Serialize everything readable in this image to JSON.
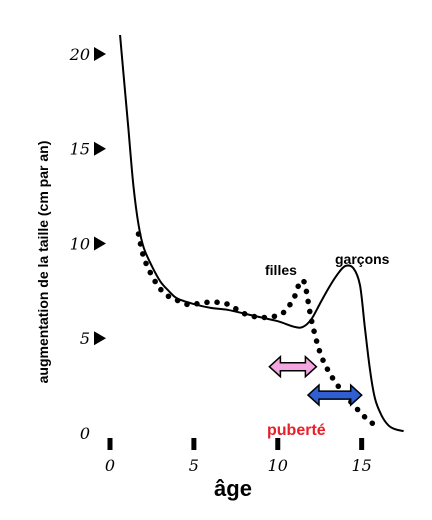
{
  "chart_data": {
    "type": "line",
    "xlabel": "âge",
    "ylabel": "augmentation de la taille (cm par an)",
    "xlim": [
      0,
      18
    ],
    "ylim": [
      0,
      21
    ],
    "x_ticks": [
      0,
      5,
      10,
      15
    ],
    "x_tick_labels": [
      "0",
      "5",
      "10",
      "15"
    ],
    "y_ticks": [
      0,
      5,
      10,
      15,
      20
    ],
    "y_tick_labels": [
      "0",
      "5",
      "10",
      "15",
      "20"
    ],
    "grid": false,
    "series": [
      {
        "name": "garçons",
        "style": "solid",
        "color": "#000000",
        "x": [
          0.5,
          0.8,
          1.1,
          1.4,
          1.7,
          2.0,
          2.5,
          3.0,
          3.5,
          4.0,
          5.0,
          6.0,
          7.0,
          8.0,
          9.0,
          10.0,
          11.0,
          11.5,
          12.0,
          12.5,
          13.0,
          13.5,
          14.0,
          14.5,
          14.9,
          15.2,
          15.5,
          15.8,
          16.2,
          16.6,
          17.0,
          17.5
        ],
        "y": [
          22.0,
          19.0,
          16.0,
          13.0,
          11.0,
          9.8,
          8.8,
          8.0,
          7.5,
          7.1,
          6.8,
          6.6,
          6.5,
          6.3,
          6.1,
          5.9,
          5.6,
          5.6,
          6.0,
          6.8,
          7.6,
          8.3,
          8.8,
          8.7,
          7.8,
          5.5,
          3.3,
          1.8,
          0.9,
          0.4,
          0.2,
          0.1
        ]
      },
      {
        "name": "filles",
        "style": "dotted",
        "color": "#000000",
        "x": [
          1.7,
          2.0,
          2.5,
          3.0,
          3.5,
          4.0,
          4.5,
          5.0,
          6.0,
          7.0,
          8.0,
          9.0,
          10.0,
          10.5,
          11.0,
          11.3,
          11.6,
          12.0,
          12.5,
          13.0,
          13.5,
          14.0,
          14.5,
          15.0,
          15.5,
          16.0
        ],
        "y": [
          10.5,
          9.3,
          8.3,
          7.6,
          7.2,
          7.0,
          6.8,
          6.8,
          6.9,
          6.8,
          6.3,
          6.1,
          6.2,
          6.5,
          7.2,
          7.9,
          7.9,
          6.0,
          4.3,
          3.3,
          2.6,
          2.0,
          1.5,
          1.0,
          0.6,
          0.3
        ]
      }
    ],
    "annotations": [
      {
        "text": "filles",
        "color": "#000000"
      },
      {
        "text": "garçons",
        "color": "#000000"
      },
      {
        "text": "puberté",
        "color": "#e8202a"
      }
    ],
    "arrows": [
      {
        "name": "filles",
        "from": 9.5,
        "to": 12.3,
        "at_y": 3.5,
        "color": "#f4a6e0"
      },
      {
        "name": "garçons",
        "from": 11.8,
        "to": 15.0,
        "at_y": 2.0,
        "color": "#2f5fd0"
      }
    ]
  }
}
